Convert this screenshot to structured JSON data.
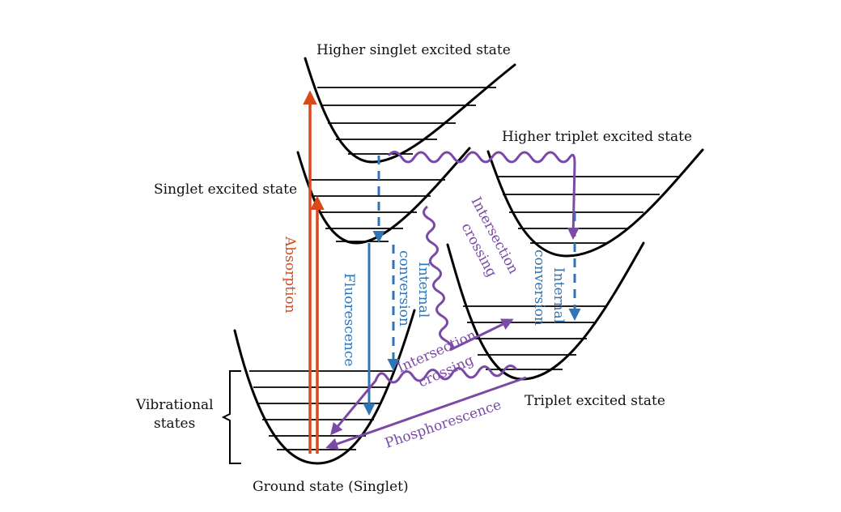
{
  "labels": {
    "higher_singlet": "Higher singlet excited state",
    "higher_triplet": "Higher triplet excited state",
    "singlet_excited": "Singlet excited state",
    "triplet_excited": "Triplet excited state",
    "ground": "Ground state (Singlet)",
    "vib_line1": "Vibrational",
    "vib_line2": "states",
    "absorption": "Absorption",
    "fluorescence": "Fluorescence",
    "internal_1": "Internal",
    "conversion_1": "conversion",
    "internal_2": "Internal",
    "conversion_2": "conversion",
    "intersection_1": "Intersection",
    "crossing_1": "crossing",
    "intersection_2": "Intersection",
    "crossing_2": "crossing",
    "phosphorescence": "Phosphorescence"
  },
  "colors": {
    "absorption": "#d84a1b",
    "fluorescence": "#2f74b5",
    "intersystem": "#7a4aa6",
    "wells": "#000000"
  }
}
